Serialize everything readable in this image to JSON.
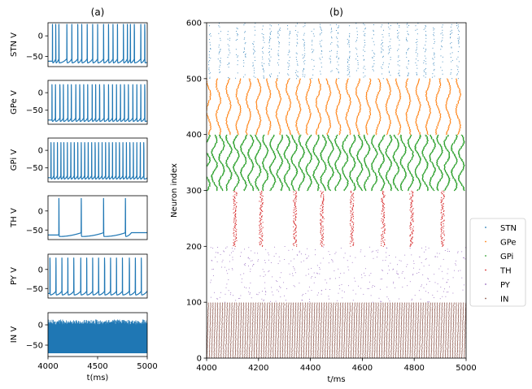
{
  "chart_data": [
    {
      "type": "line",
      "panel_label": "(a)",
      "description": "Membrane potential traces, 4000-5000 ms",
      "xlim": [
        4000,
        5000
      ],
      "x_ticks": [
        4000,
        4500,
        5000
      ],
      "xlabel": "t(ms)",
      "color": "#1f77b4",
      "traces": [
        {
          "ylabel": "STN V",
          "yticks": [
            0,
            -50
          ],
          "ylim": [
            -75,
            32
          ],
          "baseline": -66,
          "peak": 28,
          "spikes": [
            4045,
            4078,
            4110,
            4190,
            4240,
            4300,
            4340,
            4395,
            4450,
            4500,
            4560,
            4610,
            4655,
            4700,
            4760,
            4800,
            4830,
            4870,
            4935,
            4975
          ]
        },
        {
          "ylabel": "GPe V",
          "yticks": [
            0,
            -50
          ],
          "ylim": [
            -90,
            35
          ],
          "baseline": -82,
          "peak": 23,
          "spikes": [
            4040,
            4075,
            4120,
            4155,
            4200,
            4235,
            4280,
            4320,
            4360,
            4400,
            4445,
            4480,
            4520,
            4565,
            4610,
            4650,
            4690,
            4730,
            4770,
            4810,
            4855,
            4895,
            4935,
            4975
          ]
        },
        {
          "ylabel": "GPi V",
          "yticks": [
            0,
            -50
          ],
          "ylim": [
            -90,
            35
          ],
          "baseline": -82,
          "peak": 22,
          "spikes": [
            4030,
            4060,
            4095,
            4130,
            4160,
            4195,
            4230,
            4265,
            4300,
            4335,
            4370,
            4405,
            4440,
            4475,
            4510,
            4545,
            4580,
            4615,
            4650,
            4685,
            4720,
            4755,
            4790,
            4825,
            4860,
            4895,
            4930,
            4965
          ]
        },
        {
          "ylabel": "TH V",
          "yticks": [
            0,
            -50
          ],
          "ylim": [
            -75,
            40
          ],
          "baseline": -67,
          "peak": 33,
          "spikes": [
            4110,
            4335,
            4560,
            4780
          ]
        },
        {
          "ylabel": "PY V",
          "yticks": [
            0,
            -50
          ],
          "ylim": [
            -75,
            40
          ],
          "baseline": -67,
          "peak": 30,
          "spikes": [
            4020,
            4080,
            4140,
            4200,
            4260,
            4330,
            4390,
            4450,
            4510,
            4570,
            4630,
            4690,
            4750,
            4820,
            4880,
            4940
          ]
        },
        {
          "ylabel": "IN V",
          "yticks": [
            0,
            -50
          ],
          "ylim": [
            -78,
            30
          ],
          "baseline": -70,
          "peak": 13,
          "dense": true
        }
      ]
    },
    {
      "type": "scatter",
      "panel_label": "(b)",
      "description": "Raster plot of spike times for 600 neurons",
      "xlabel": "t/ms",
      "ylabel": "Neuron index",
      "xlim": [
        4000,
        5000
      ],
      "ylim": [
        0,
        600
      ],
      "x_ticks": [
        4000,
        4200,
        4400,
        4600,
        4800,
        5000
      ],
      "y_ticks": [
        0,
        100,
        200,
        300,
        400,
        500,
        600
      ],
      "legend_position": "right, outside axes",
      "groups": [
        {
          "name": "STN",
          "color": "#1f77b4",
          "index_range": [
            500,
            600
          ]
        },
        {
          "name": "GPe",
          "color": "#ff7f0e",
          "index_range": [
            400,
            500
          ]
        },
        {
          "name": "GPi",
          "color": "#2ca02c",
          "index_range": [
            300,
            400
          ]
        },
        {
          "name": "TH",
          "color": "#d62728",
          "index_range": [
            200,
            300
          ],
          "burst_times": [
            4110,
            4210,
            4340,
            4445,
            4560,
            4680,
            4790,
            4910
          ]
        },
        {
          "name": "PY",
          "color": "#9467bd",
          "index_range": [
            100,
            200
          ]
        },
        {
          "name": "IN",
          "color": "#8c564b",
          "index_range": [
            0,
            100
          ]
        }
      ]
    }
  ]
}
